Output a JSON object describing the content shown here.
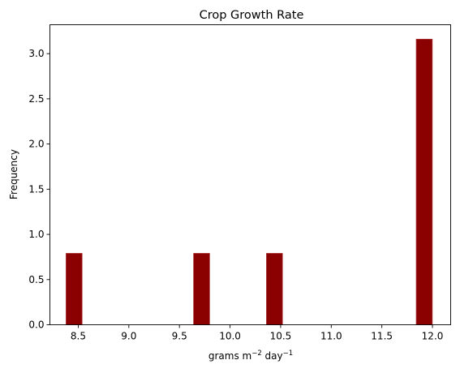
{
  "chart_data": {
    "type": "bar",
    "title": "Crop Growth Rate",
    "xlabel": "grams m",
    "xlabel_sup1": "−2",
    "xlabel_mid": " day",
    "xlabel_sup2": "−1",
    "ylabel": "Frequency",
    "xlim": [
      8.22,
      12.18
    ],
    "ylim": [
      0,
      3.32
    ],
    "bin_width": 0.158,
    "bars": [
      {
        "x_left": 8.38,
        "value": 0.79
      },
      {
        "x_left": 9.64,
        "value": 0.79
      },
      {
        "x_left": 10.36,
        "value": 0.79
      },
      {
        "x_left": 11.84,
        "value": 3.16
      }
    ],
    "x_ticks": [
      {
        "value": 8.5,
        "label": "8.5"
      },
      {
        "value": 9.0,
        "label": "9.0"
      },
      {
        "value": 9.5,
        "label": "9.5"
      },
      {
        "value": 10.0,
        "label": "10.0"
      },
      {
        "value": 10.5,
        "label": "10.5"
      },
      {
        "value": 11.0,
        "label": "11.0"
      },
      {
        "value": 11.5,
        "label": "11.5"
      },
      {
        "value": 12.0,
        "label": "12.0"
      }
    ],
    "y_ticks": [
      {
        "value": 0.0,
        "label": "0.0"
      },
      {
        "value": 0.5,
        "label": "0.5"
      },
      {
        "value": 1.0,
        "label": "1.0"
      },
      {
        "value": 1.5,
        "label": "1.5"
      },
      {
        "value": 2.0,
        "label": "2.0"
      },
      {
        "value": 2.5,
        "label": "2.5"
      },
      {
        "value": 3.0,
        "label": "3.0"
      }
    ],
    "grid": false,
    "colors": {
      "bar_fill": "#8b0000",
      "bar_edge": "#a83232"
    }
  }
}
